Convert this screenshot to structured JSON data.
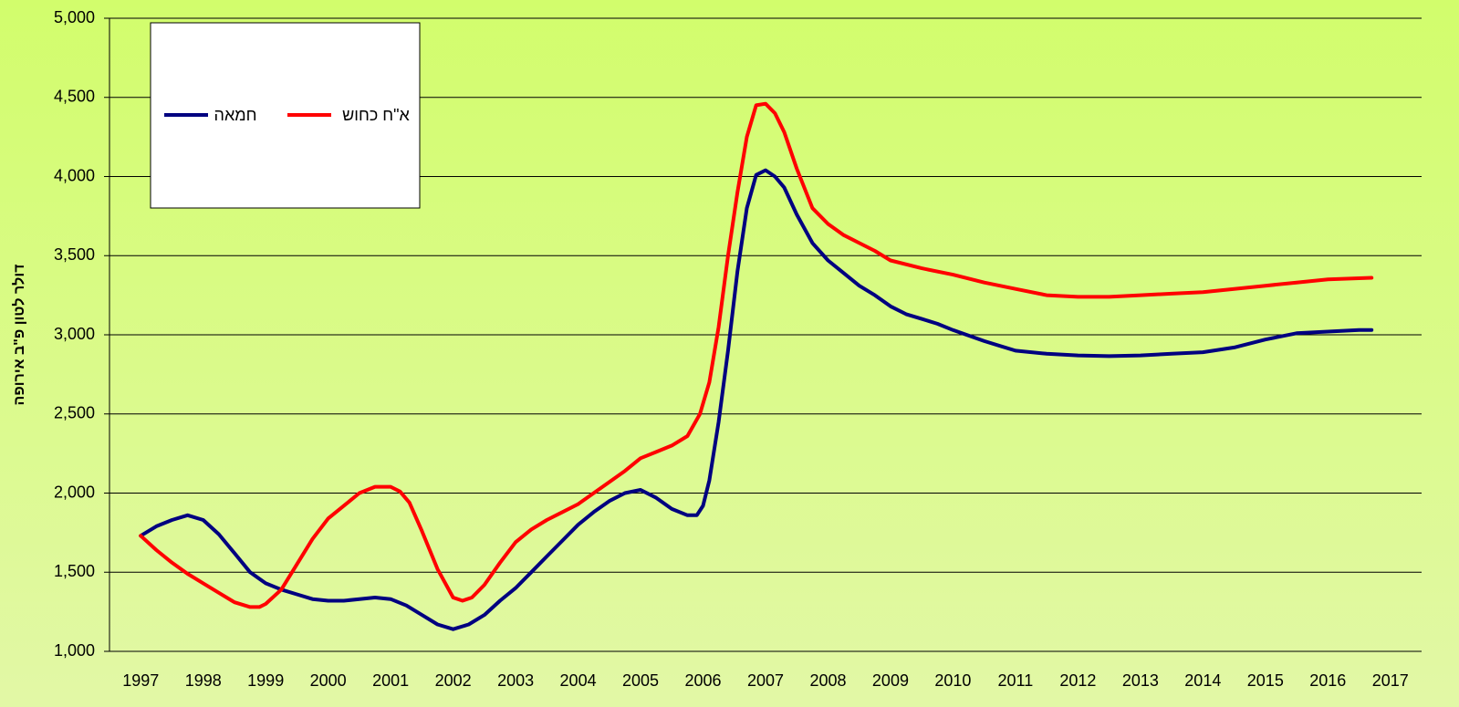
{
  "chart_data": {
    "type": "line",
    "y_label": "דולר לטון פ\"ב אירופה",
    "xlim": [
      1996.5,
      2017.5
    ],
    "xticks": [
      1997,
      1998,
      1999,
      2000,
      2001,
      2002,
      2003,
      2004,
      2005,
      2006,
      2007,
      2008,
      2009,
      2010,
      2011,
      2012,
      2013,
      2014,
      2015,
      2016,
      2017
    ],
    "ylim": [
      1000,
      5000
    ],
    "yticks": [
      {
        "value": 1000,
        "label": "1,000"
      },
      {
        "value": 1500,
        "label": "1,500"
      },
      {
        "value": 2000,
        "label": "2,000"
      },
      {
        "value": 2500,
        "label": "2,500"
      },
      {
        "value": 3000,
        "label": "3,000"
      },
      {
        "value": 3500,
        "label": "3,500"
      },
      {
        "value": 4000,
        "label": "4,000"
      },
      {
        "value": 4500,
        "label": "4,500"
      },
      {
        "value": 5000,
        "label": "5,000"
      }
    ],
    "grid": true,
    "legend": "top-left",
    "series": [
      {
        "name": "חמאה",
        "color": "#000080",
        "x": [
          1997,
          1997.25,
          1997.5,
          1997.75,
          1998,
          1998.25,
          1998.5,
          1998.75,
          1999,
          1999.25,
          1999.5,
          1999.75,
          2000,
          2000.25,
          2000.5,
          2000.75,
          2001,
          2001.25,
          2001.5,
          2001.75,
          2002,
          2002.25,
          2002.5,
          2002.75,
          2003,
          2003.25,
          2003.5,
          2003.75,
          2004,
          2004.25,
          2004.5,
          2004.75,
          2005,
          2005.25,
          2005.5,
          2005.75,
          2005.9,
          2006,
          2006.1,
          2006.25,
          2006.4,
          2006.55,
          2006.7,
          2006.85,
          2007,
          2007.15,
          2007.3,
          2007.5,
          2007.75,
          2008,
          2008.25,
          2008.5,
          2008.75,
          2009,
          2009.25,
          2009.5,
          2009.75,
          2010,
          2010.5,
          2011,
          2011.5,
          2012,
          2012.5,
          2013,
          2013.5,
          2014,
          2014.5,
          2015,
          2015.5,
          2016,
          2016.5,
          2016.7
        ],
        "values": [
          1730,
          1790,
          1830,
          1860,
          1830,
          1740,
          1620,
          1500,
          1430,
          1390,
          1360,
          1330,
          1320,
          1320,
          1330,
          1340,
          1330,
          1290,
          1230,
          1170,
          1140,
          1170,
          1230,
          1320,
          1400,
          1500,
          1600,
          1700,
          1800,
          1880,
          1950,
          2000,
          2020,
          1970,
          1900,
          1860,
          1860,
          1920,
          2080,
          2450,
          2900,
          3400,
          3800,
          4010,
          4040,
          4000,
          3930,
          3760,
          3580,
          3470,
          3390,
          3310,
          3250,
          3180,
          3130,
          3100,
          3070,
          3030,
          2960,
          2900,
          2880,
          2870,
          2865,
          2870,
          2880,
          2890,
          2920,
          2970,
          3010,
          3020,
          3030,
          3030
        ]
      },
      {
        "name": "א\"ח כחוש",
        "color": "#ff0000",
        "x": [
          1997,
          1997.25,
          1997.5,
          1997.75,
          1998,
          1998.25,
          1998.5,
          1998.75,
          1998.9,
          1999,
          1999.25,
          1999.5,
          1999.75,
          2000,
          2000.25,
          2000.5,
          2000.75,
          2001,
          2001.15,
          2001.3,
          2001.5,
          2001.75,
          2002,
          2002.15,
          2002.3,
          2002.5,
          2002.75,
          2003,
          2003.25,
          2003.5,
          2003.75,
          2004,
          2004.25,
          2004.5,
          2004.75,
          2005,
          2005.25,
          2005.5,
          2005.75,
          2005.95,
          2006.1,
          2006.25,
          2006.4,
          2006.55,
          2006.7,
          2006.85,
          2007,
          2007.15,
          2007.3,
          2007.5,
          2007.75,
          2008,
          2008.25,
          2008.5,
          2008.75,
          2009,
          2009.5,
          2010,
          2010.5,
          2011,
          2011.5,
          2012,
          2012.5,
          2013,
          2013.5,
          2014,
          2014.5,
          2015,
          2015.5,
          2016,
          2016.7
        ],
        "values": [
          1730,
          1640,
          1560,
          1490,
          1430,
          1370,
          1310,
          1280,
          1280,
          1300,
          1390,
          1550,
          1710,
          1840,
          1920,
          2000,
          2040,
          2040,
          2010,
          1940,
          1760,
          1520,
          1340,
          1320,
          1340,
          1420,
          1560,
          1690,
          1770,
          1830,
          1880,
          1930,
          2000,
          2070,
          2140,
          2220,
          2260,
          2300,
          2360,
          2500,
          2700,
          3050,
          3500,
          3900,
          4250,
          4450,
          4460,
          4400,
          4280,
          4050,
          3800,
          3700,
          3630,
          3580,
          3530,
          3470,
          3420,
          3380,
          3330,
          3290,
          3250,
          3240,
          3240,
          3250,
          3260,
          3270,
          3290,
          3310,
          3330,
          3350,
          3360
        ]
      }
    ]
  }
}
